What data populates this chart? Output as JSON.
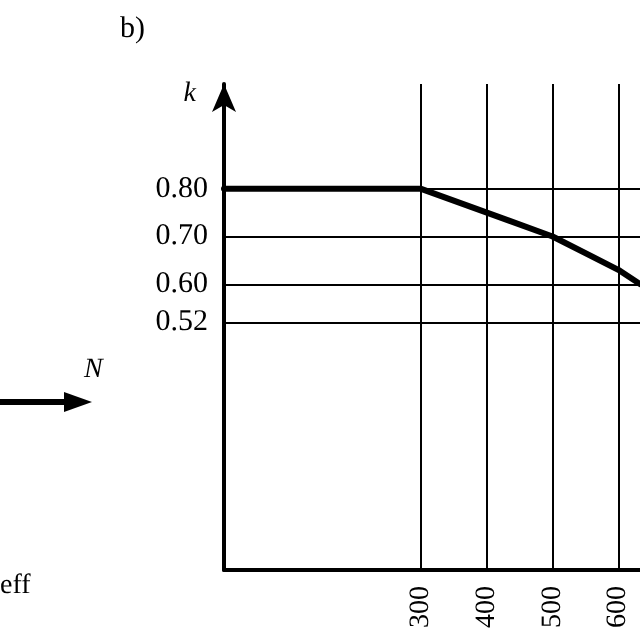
{
  "chart_data": {
    "type": "line",
    "title": "b)",
    "ylabel": "k",
    "annotations": [
      "N",
      "eff"
    ],
    "series": [
      {
        "color": "#000000",
        "x": [
          0,
          300,
          400,
          500,
          600,
          633
        ],
        "values": [
          0.8,
          0.8,
          0.75,
          0.7,
          0.63,
          0.6
        ]
      }
    ],
    "xlim": [
      0,
      633
    ],
    "xticks": [
      300,
      400,
      500,
      600
    ],
    "ylim": [
      0,
      1.02
    ],
    "yticks": [
      0.52,
      {
        "value": 0.6,
        "label": "0.60"
      },
      {
        "value": 0.7,
        "label": "0.70"
      },
      {
        "value": 0.8,
        "label": "0.80"
      }
    ],
    "grid": true,
    "marker": "none",
    "line_style": "solid"
  }
}
